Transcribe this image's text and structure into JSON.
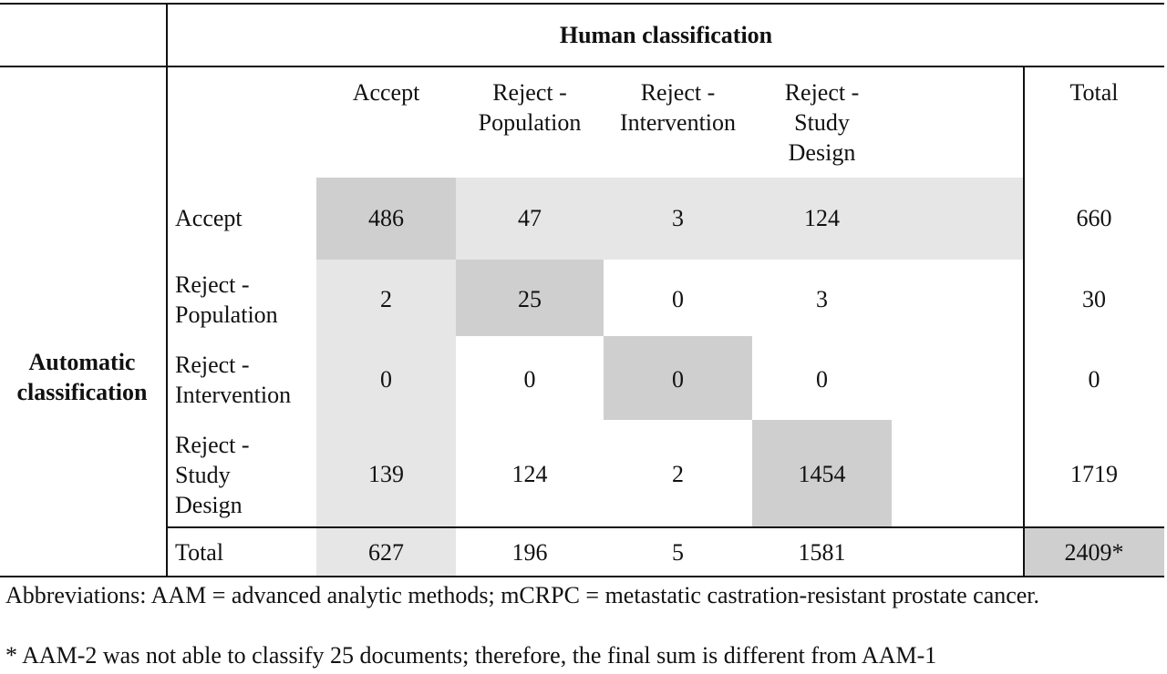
{
  "table": {
    "title": "Human classification",
    "row_group_label": "Automatic\nclassification",
    "columns": [
      "Accept",
      "Reject -\nPopulation",
      "Reject -\nIntervention",
      "Reject -\nStudy\nDesign"
    ],
    "total_header": "Total",
    "rows": [
      {
        "label": "Accept",
        "values": [
          "486",
          "47",
          "3",
          "124"
        ],
        "total": "660"
      },
      {
        "label": "Reject -\nPopulation",
        "values": [
          "2",
          "25",
          "0",
          "3"
        ],
        "total": "30"
      },
      {
        "label": "Reject -\nIntervention",
        "values": [
          "0",
          "0",
          "0",
          "0"
        ],
        "total": "0"
      },
      {
        "label": "Reject -\nStudy\nDesign",
        "values": [
          "139",
          "124",
          "2",
          "1454"
        ],
        "total": "1719"
      }
    ],
    "totals_row": {
      "label": "Total",
      "values": [
        "627",
        "196",
        "5",
        "1581"
      ],
      "total": "2409*"
    }
  },
  "notes": {
    "abbreviations": "Abbreviations: AAM = advanced analytic methods; mCRPC = metastatic castration-resistant prostate cancer.",
    "footnote": "*  AAM-2 was not able to classify 25 documents; therefore, the final sum is different from AAM-1"
  },
  "colors": {
    "light_shade": "#e6e6e6",
    "dark_shade": "#cfcfcf",
    "rule": "#111111"
  }
}
